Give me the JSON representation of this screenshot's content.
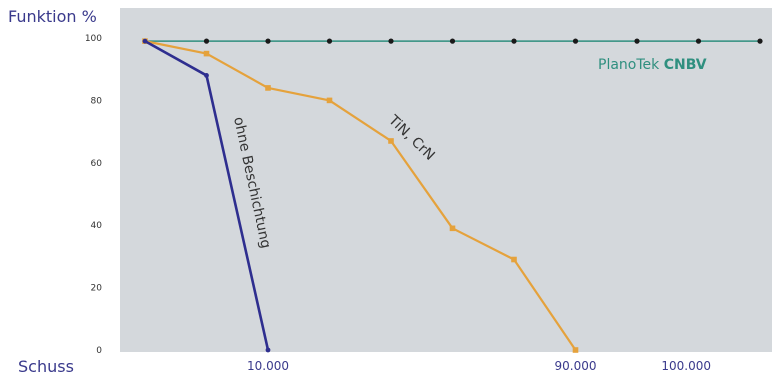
{
  "chart_data": {
    "type": "line",
    "ylabel": "Funktion %",
    "xlabel": "Schuss",
    "ylim": [
      0,
      100
    ],
    "yticks": [
      "100",
      "80",
      "60",
      "40",
      "20",
      "0"
    ],
    "xticks": [
      {
        "label": "10.000",
        "x": 2
      },
      {
        "label": "90.000",
        "x": 7
      },
      {
        "label": "100.000",
        "x": 8.8
      }
    ],
    "grid": false,
    "colors": {
      "plot_background": "#d4d8dc",
      "ohne": "#2e2e8f",
      "tin": "#e5a23c",
      "planotek": "#2f8f7f",
      "markers_planotek": "#1a1a1a"
    },
    "series": [
      {
        "key": "planotek",
        "name_light": "PlanoTek",
        "name_bold": "CNBV",
        "x": [
          0,
          1,
          2,
          3,
          4,
          5,
          6,
          7,
          8,
          9,
          10
        ],
        "y": [
          99,
          99,
          99,
          99,
          99,
          99,
          99,
          99,
          99,
          99,
          99
        ]
      },
      {
        "key": "tin",
        "name": "TiN, CrN",
        "x": [
          0,
          1,
          2,
          3,
          4,
          5,
          6,
          7
        ],
        "y": [
          99,
          95,
          84,
          80,
          67,
          39,
          29,
          0
        ]
      },
      {
        "key": "ohne",
        "name": "ohne Beschichtung",
        "x": [
          0,
          1,
          2
        ],
        "y": [
          99,
          88,
          0
        ]
      }
    ]
  }
}
